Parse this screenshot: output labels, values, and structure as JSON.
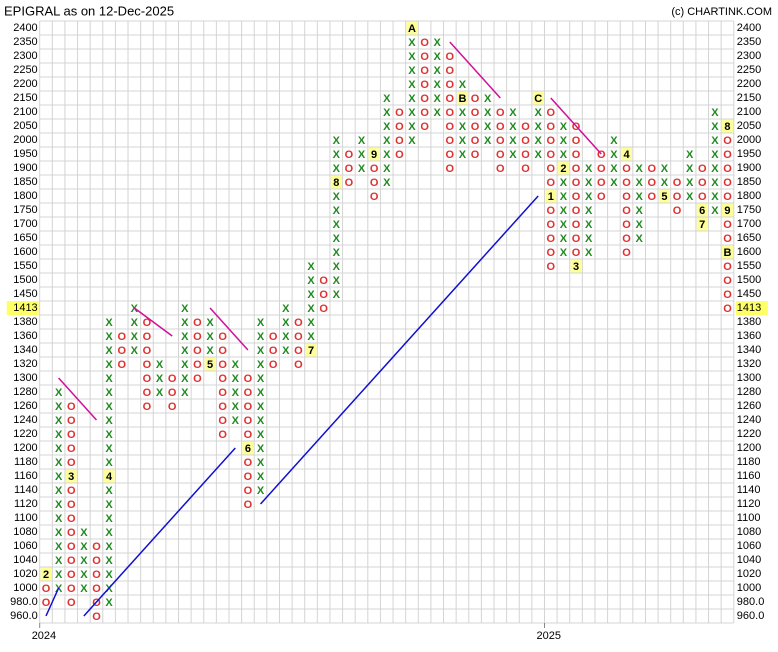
{
  "chart_data": {
    "type": "point_and_figure",
    "title": "EPIGRAL as on 12-Dec-2025",
    "credit": "(c) CHARTINK.COM",
    "x_color": "#1f8a1f",
    "o_color": "#e03030",
    "trend_color": "#1010d0",
    "resistance_color": "#d0109a",
    "grid": true,
    "last_price": 1413,
    "levels": [
      2400,
      2350,
      2300,
      2250,
      2200,
      2150,
      2100,
      2050,
      2000,
      1950,
      1900,
      1850,
      1800,
      1750,
      1700,
      1650,
      1600,
      1550,
      1500,
      1450,
      1413,
      1380,
      1360,
      1340,
      1320,
      1300,
      1280,
      1260,
      1240,
      1220,
      1200,
      1180,
      1160,
      1140,
      1120,
      1100,
      1080,
      1060,
      1040,
      1020,
      1000,
      {
        "value": 980,
        "label": "980.0"
      },
      {
        "value": 960,
        "label": "960.0"
      }
    ],
    "year_labels": [
      {
        "label": "2024",
        "column": 0
      },
      {
        "label": "2025",
        "column": 40
      }
    ],
    "columns": [
      {
        "type": "O",
        "high": 1020,
        "low": 980,
        "notes": [
          {
            "level": 1020,
            "label": "2"
          }
        ]
      },
      {
        "type": "X",
        "high": 1280,
        "low": 1000,
        "notes": []
      },
      {
        "type": "O",
        "high": 1260,
        "low": 980,
        "notes": [
          {
            "level": 1160,
            "label": "3"
          }
        ]
      },
      {
        "type": "X",
        "high": 1080,
        "low": 1000,
        "notes": []
      },
      {
        "type": "O",
        "high": 1060,
        "low": 960,
        "notes": []
      },
      {
        "type": "X",
        "high": 1380,
        "low": 980,
        "notes": [
          {
            "level": 1160,
            "label": "4"
          }
        ]
      },
      {
        "type": "O",
        "high": 1360,
        "low": 1320,
        "notes": []
      },
      {
        "type": "X",
        "high": 1413,
        "low": 1340,
        "notes": []
      },
      {
        "type": "O",
        "high": 1380,
        "low": 1260,
        "notes": []
      },
      {
        "type": "X",
        "high": 1320,
        "low": 1280,
        "notes": []
      },
      {
        "type": "O",
        "high": 1300,
        "low": 1260,
        "notes": []
      },
      {
        "type": "X",
        "high": 1413,
        "low": 1280,
        "notes": []
      },
      {
        "type": "O",
        "high": 1380,
        "low": 1300,
        "notes": []
      },
      {
        "type": "X",
        "high": 1380,
        "low": 1320,
        "notes": [
          {
            "level": 1320,
            "label": "5"
          }
        ]
      },
      {
        "type": "O",
        "high": 1360,
        "low": 1220,
        "notes": []
      },
      {
        "type": "X",
        "high": 1320,
        "low": 1240,
        "notes": []
      },
      {
        "type": "O",
        "high": 1300,
        "low": 1120,
        "notes": [
          {
            "level": 1200,
            "label": "6"
          }
        ]
      },
      {
        "type": "X",
        "high": 1380,
        "low": 1140,
        "notes": []
      },
      {
        "type": "O",
        "high": 1360,
        "low": 1320,
        "notes": []
      },
      {
        "type": "X",
        "high": 1413,
        "low": 1340,
        "notes": []
      },
      {
        "type": "O",
        "high": 1380,
        "low": 1320,
        "notes": []
      },
      {
        "type": "X",
        "high": 1550,
        "low": 1340,
        "notes": [
          {
            "level": 1340,
            "label": "7"
          }
        ]
      },
      {
        "type": "O",
        "high": 1500,
        "low": 1413,
        "notes": []
      },
      {
        "type": "X",
        "high": 2000,
        "low": 1450,
        "notes": [
          {
            "level": 1850,
            "label": "8"
          }
        ]
      },
      {
        "type": "O",
        "high": 1950,
        "low": 1850,
        "notes": []
      },
      {
        "type": "X",
        "high": 2000,
        "low": 1900,
        "notes": []
      },
      {
        "type": "O",
        "high": 1950,
        "low": 1800,
        "notes": [
          {
            "level": 1950,
            "label": "9"
          }
        ]
      },
      {
        "type": "X",
        "high": 2150,
        "low": 1850,
        "notes": []
      },
      {
        "type": "O",
        "high": 2100,
        "low": 1950,
        "notes": []
      },
      {
        "type": "X",
        "high": 2400,
        "low": 2000,
        "notes": [
          {
            "level": 2400,
            "label": "A"
          }
        ]
      },
      {
        "type": "O",
        "high": 2350,
        "low": 2050,
        "notes": []
      },
      {
        "type": "X",
        "high": 2350,
        "low": 2100,
        "notes": []
      },
      {
        "type": "O",
        "high": 2300,
        "low": 1900,
        "notes": []
      },
      {
        "type": "X",
        "high": 2200,
        "low": 1950,
        "notes": [
          {
            "level": 2150,
            "label": "B"
          }
        ]
      },
      {
        "type": "O",
        "high": 2150,
        "low": 1950,
        "notes": []
      },
      {
        "type": "X",
        "high": 2150,
        "low": 2000,
        "notes": []
      },
      {
        "type": "O",
        "high": 2100,
        "low": 1900,
        "notes": []
      },
      {
        "type": "X",
        "high": 2100,
        "low": 1950,
        "notes": []
      },
      {
        "type": "O",
        "high": 2050,
        "low": 1900,
        "notes": []
      },
      {
        "type": "X",
        "high": 2150,
        "low": 1950,
        "notes": [
          {
            "level": 2150,
            "label": "C"
          }
        ]
      },
      {
        "type": "O",
        "high": 2100,
        "low": 1550,
        "notes": [
          {
            "level": 1800,
            "label": "1"
          }
        ]
      },
      {
        "type": "X",
        "high": 2050,
        "low": 1600,
        "notes": [
          {
            "level": 1900,
            "label": "2"
          }
        ]
      },
      {
        "type": "O",
        "high": 2050,
        "low": 1550,
        "notes": [
          {
            "level": 1550,
            "label": "3"
          }
        ]
      },
      {
        "type": "X",
        "high": 1900,
        "low": 1600,
        "notes": []
      },
      {
        "type": "O",
        "high": 1950,
        "low": 1800,
        "notes": []
      },
      {
        "type": "X",
        "high": 2000,
        "low": 1850,
        "notes": []
      },
      {
        "type": "O",
        "high": 1950,
        "low": 1600,
        "notes": [
          {
            "level": 1950,
            "label": "4"
          }
        ]
      },
      {
        "type": "X",
        "high": 1900,
        "low": 1650,
        "notes": []
      },
      {
        "type": "O",
        "high": 1900,
        "low": 1800,
        "notes": []
      },
      {
        "type": "X",
        "high": 1900,
        "low": 1800,
        "notes": [
          {
            "level": 1800,
            "label": "5"
          }
        ]
      },
      {
        "type": "O",
        "high": 1850,
        "low": 1750,
        "notes": []
      },
      {
        "type": "X",
        "high": 1950,
        "low": 1800,
        "notes": []
      },
      {
        "type": "O",
        "high": 1900,
        "low": 1700,
        "notes": [
          {
            "level": 1750,
            "label": "6"
          },
          {
            "level": 1700,
            "label": "7"
          }
        ]
      },
      {
        "type": "X",
        "high": 2100,
        "low": 1750,
        "notes": []
      },
      {
        "type": "O",
        "high": 2050,
        "low": 1413,
        "notes": [
          {
            "level": 2050,
            "label": "8"
          },
          {
            "level": 1750,
            "label": "9"
          },
          {
            "level": 1600,
            "label": "B"
          }
        ]
      }
    ]
  }
}
